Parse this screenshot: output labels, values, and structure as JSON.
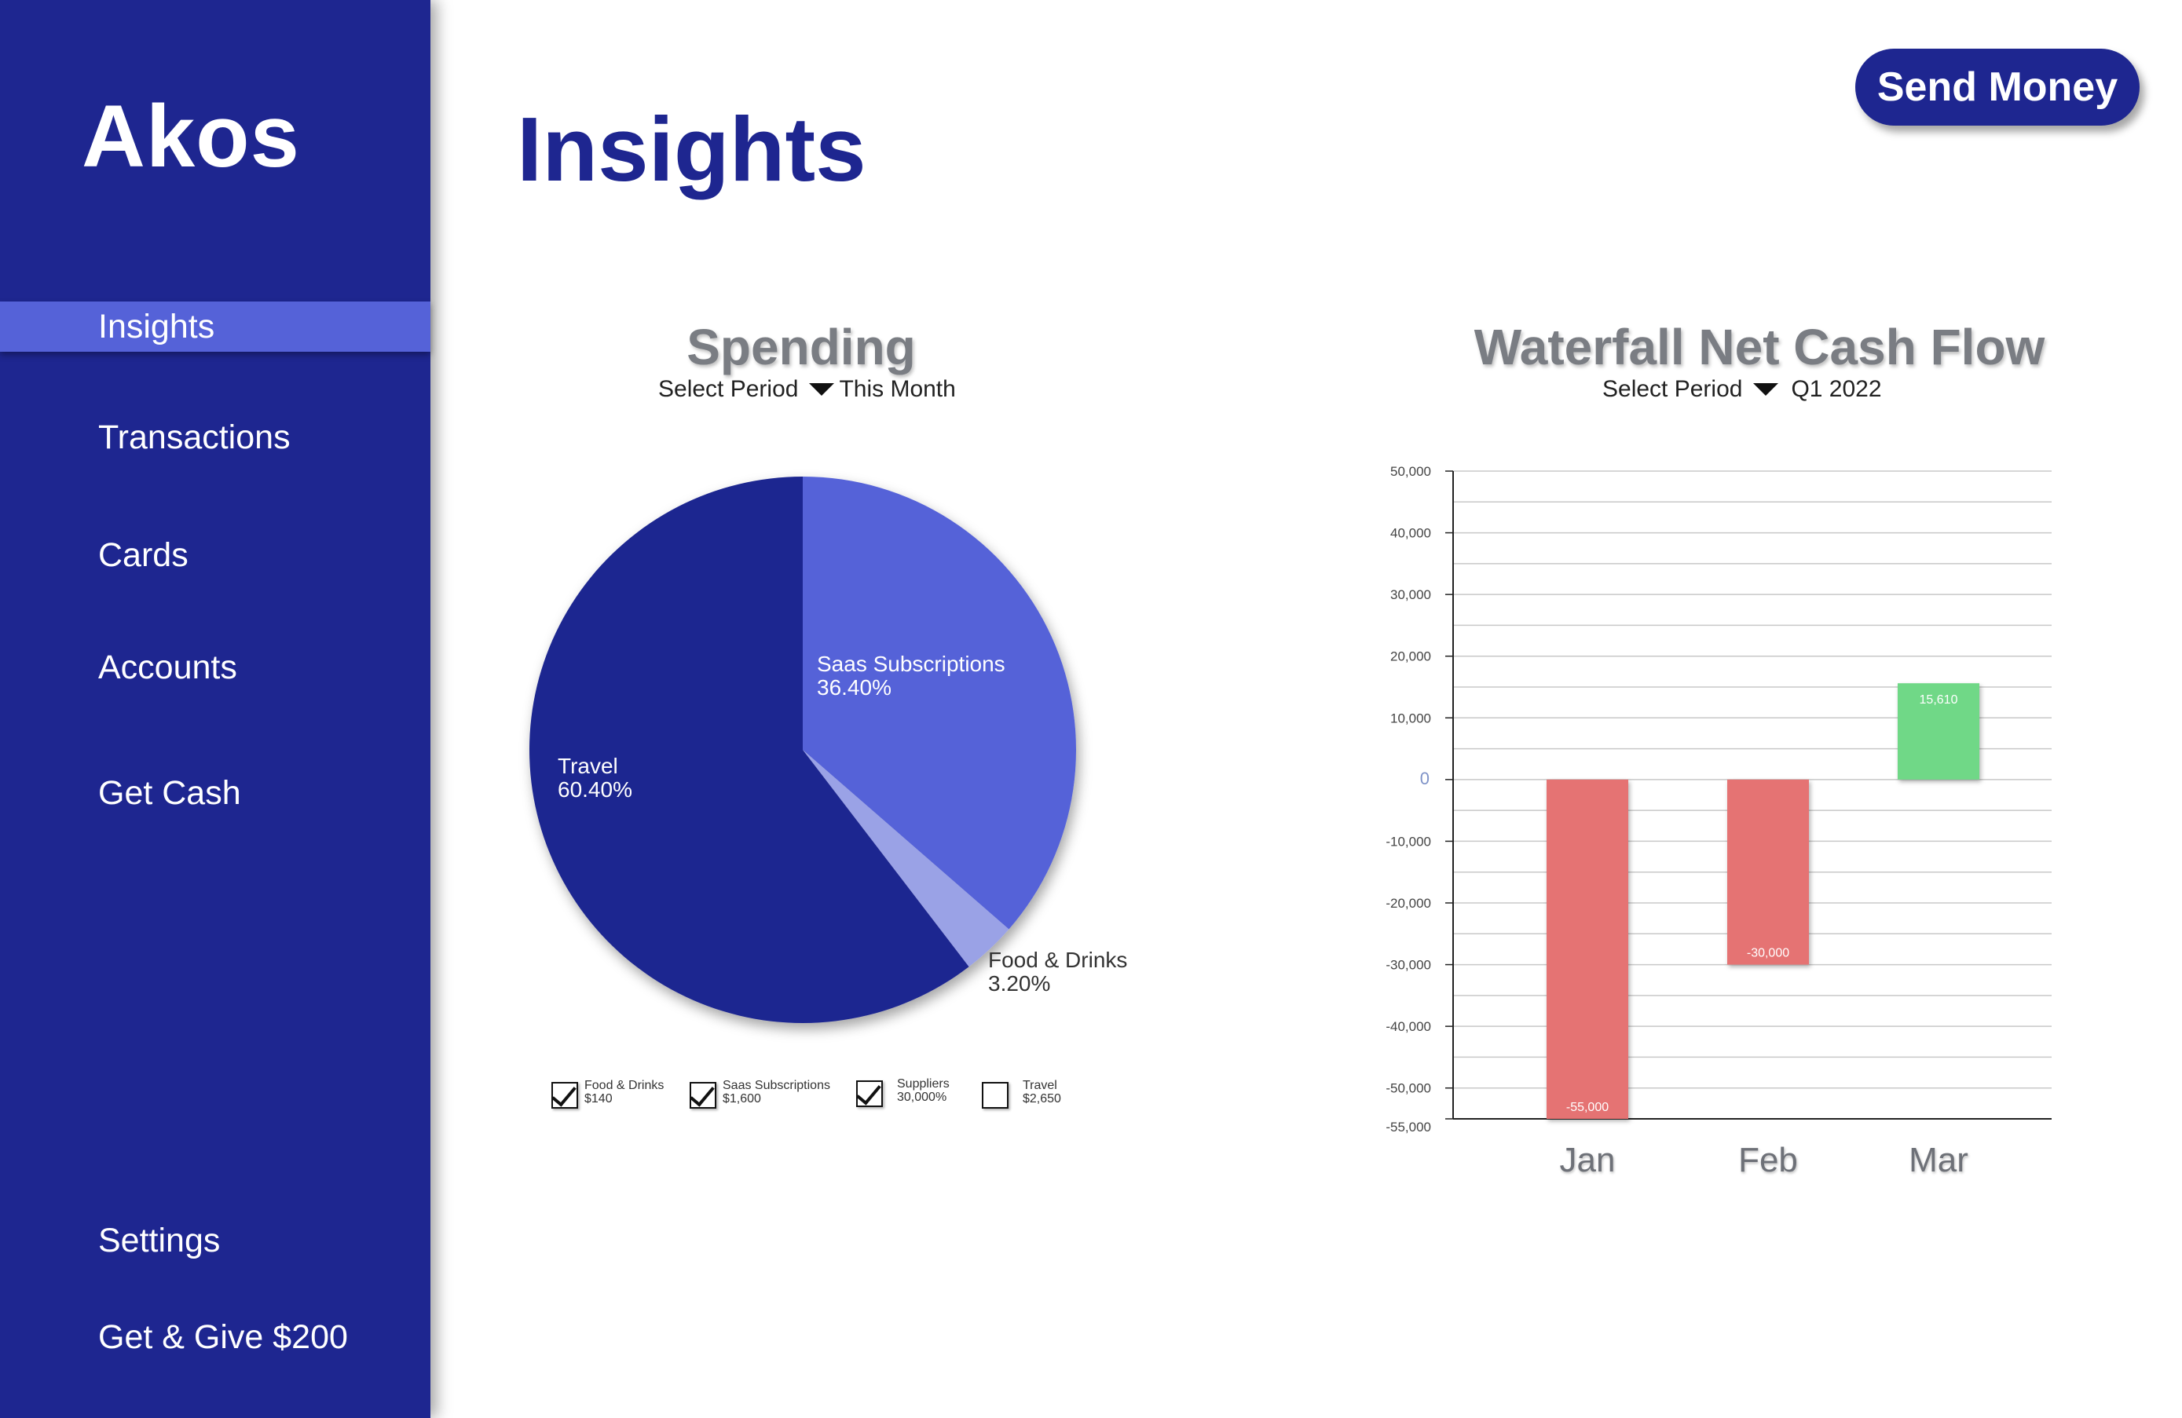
{
  "sidebar": {
    "brand": "Akos",
    "items": [
      {
        "label": "Insights",
        "active": true
      },
      {
        "label": "Transactions",
        "active": false
      },
      {
        "label": "Cards",
        "active": false
      },
      {
        "label": "Accounts",
        "active": false
      },
      {
        "label": "Get Cash",
        "active": false
      }
    ],
    "bottom_items": [
      {
        "label": "Settings"
      },
      {
        "label": "Get & Give $200"
      }
    ]
  },
  "header": {
    "title": "Insights",
    "send_money_label": "Send Money"
  },
  "spending": {
    "title": "Spending",
    "period_label": "Select Period",
    "period_value": "This Month",
    "legend": [
      {
        "name": "Food & Drinks",
        "amount": "$140",
        "checked": true
      },
      {
        "name": "Saas Subscriptions",
        "amount": "$1,600",
        "checked": true
      },
      {
        "name": "Suppliers",
        "amount": "30,000%",
        "checked": true
      },
      {
        "name": "Travel",
        "amount": "$2,650",
        "checked": false
      }
    ]
  },
  "waterfall": {
    "title": "Waterfall Net Cash Flow",
    "period_label": "Select Period",
    "period_value": "Q1 2022"
  },
  "colors": {
    "sidebar": "#1e2690",
    "accent": "#5562d8",
    "light_accent": "#9aa2e6",
    "negative": "#e57373",
    "positive": "#6fd887"
  },
  "chart_data": [
    {
      "type": "pie",
      "slices": [
        {
          "label": "Saas Subscriptions",
          "pct_label": "36.40%",
          "value": 36.4,
          "color": "#5562d8"
        },
        {
          "label": "Food & Drinks",
          "pct_label": "3.20%",
          "value": 3.2,
          "color": "#9aa2e6"
        },
        {
          "label": "Travel",
          "pct_label": "60.40%",
          "value": 60.4,
          "color": "#1e2690"
        }
      ]
    },
    {
      "type": "bar",
      "categories": [
        "Jan",
        "Feb",
        "Mar"
      ],
      "values": [
        -55000,
        -30000,
        15610
      ],
      "value_labels": [
        "-55,000",
        "-30,000",
        "15,610"
      ],
      "yticks": [
        50000,
        40000,
        30000,
        20000,
        10000,
        0,
        -10000,
        -20000,
        -30000,
        -40000,
        -50000,
        -55000
      ],
      "ytick_labels": [
        "50,000",
        "40,000",
        "30,000",
        "20,000",
        "10,000",
        "0",
        "-10,000",
        "-20,000",
        "-30,000",
        "-40,000",
        "-50,000",
        "-55,000"
      ],
      "ylim": [
        -55000,
        50000
      ],
      "grid": true
    }
  ]
}
